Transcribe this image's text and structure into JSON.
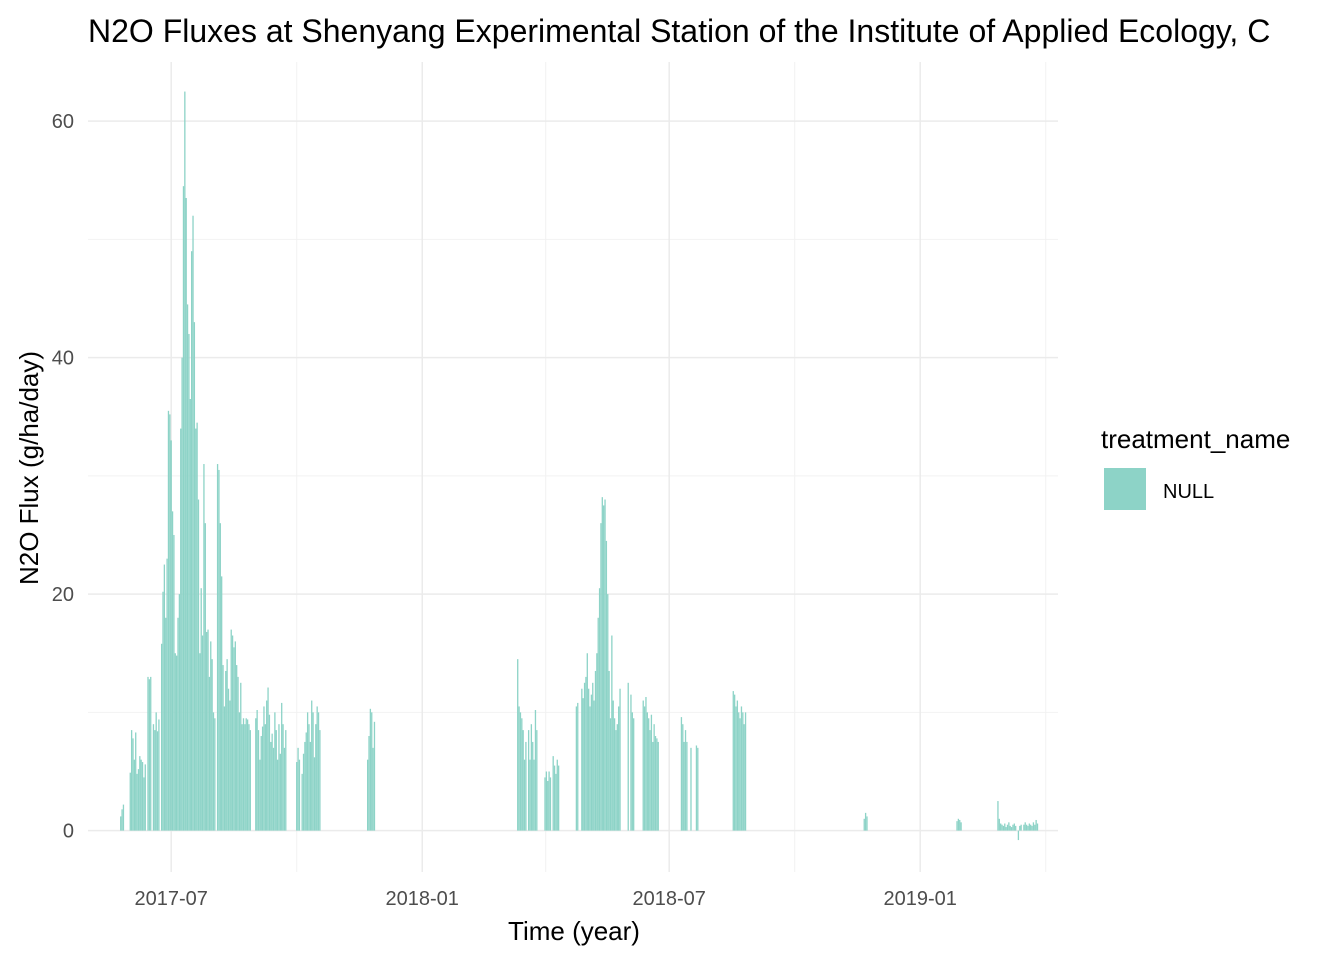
{
  "chart_data": {
    "type": "bar",
    "title": "N2O Fluxes at Shenyang Experimental Station of the Institute of Applied Ecology, C",
    "xlabel": "Time (year)",
    "ylabel": "N2O Flux (g/ha/day)",
    "x_ticks": [
      "2017-07",
      "2018-01",
      "2018-07",
      "2019-01"
    ],
    "y_ticks": [
      "0",
      "20",
      "40",
      "60"
    ],
    "xlim": [
      "2017-05-01",
      "2019-04-12"
    ],
    "ylim": [
      -3.5,
      65
    ],
    "grid": true,
    "legend": {
      "title": "treatment_name",
      "position": "right",
      "entries": [
        "NULL"
      ]
    },
    "series": [
      {
        "name": "NULL",
        "color": "#8dd3c7",
        "points": [
          [
            "2017-05-25",
            1.2
          ],
          [
            "2017-05-26",
            1.8
          ],
          [
            "2017-05-27",
            2.2
          ],
          [
            "2017-06-01",
            4.9
          ],
          [
            "2017-06-02",
            8.5
          ],
          [
            "2017-06-03",
            7.8
          ],
          [
            "2017-06-04",
            6.0
          ],
          [
            "2017-06-05",
            8.3
          ],
          [
            "2017-06-06",
            4.8
          ],
          [
            "2017-06-07",
            5.2
          ],
          [
            "2017-06-08",
            6.3
          ],
          [
            "2017-06-09",
            6.0
          ],
          [
            "2017-06-10",
            5.8
          ],
          [
            "2017-06-11",
            4.5
          ],
          [
            "2017-06-12",
            5.6
          ],
          [
            "2017-06-14",
            13.0
          ],
          [
            "2017-06-15",
            12.8
          ],
          [
            "2017-06-16",
            13.0
          ],
          [
            "2017-06-18",
            9.0
          ],
          [
            "2017-06-19",
            8.5
          ],
          [
            "2017-06-20",
            10.0
          ],
          [
            "2017-06-21",
            8.4
          ],
          [
            "2017-06-22",
            9.4
          ],
          [
            "2017-06-24",
            15.8
          ],
          [
            "2017-06-25",
            20.2
          ],
          [
            "2017-06-26",
            22.5
          ],
          [
            "2017-06-27",
            18.0
          ],
          [
            "2017-06-28",
            23.0
          ],
          [
            "2017-06-29",
            35.5
          ],
          [
            "2017-06-30",
            35.2
          ],
          [
            "2017-07-01",
            33.0
          ],
          [
            "2017-07-02",
            27.0
          ],
          [
            "2017-07-03",
            25.0
          ],
          [
            "2017-07-04",
            15.0
          ],
          [
            "2017-07-05",
            14.8
          ],
          [
            "2017-07-06",
            18.0
          ],
          [
            "2017-07-07",
            20.0
          ],
          [
            "2017-07-08",
            34.0
          ],
          [
            "2017-07-09",
            40.0
          ],
          [
            "2017-07-10",
            54.5
          ],
          [
            "2017-07-11",
            62.5
          ],
          [
            "2017-07-12",
            53.5
          ],
          [
            "2017-07-13",
            44.5
          ],
          [
            "2017-07-14",
            42.0
          ],
          [
            "2017-07-15",
            36.5
          ],
          [
            "2017-07-16",
            49.0
          ],
          [
            "2017-07-17",
            52.0
          ],
          [
            "2017-07-18",
            43.0
          ],
          [
            "2017-07-19",
            34.0
          ],
          [
            "2017-07-20",
            34.5
          ],
          [
            "2017-07-21",
            28.0
          ],
          [
            "2017-07-22",
            15.0
          ],
          [
            "2017-07-23",
            20.5
          ],
          [
            "2017-07-24",
            16.5
          ],
          [
            "2017-07-25",
            31.0
          ],
          [
            "2017-07-26",
            26.0
          ],
          [
            "2017-07-27",
            16.8
          ],
          [
            "2017-07-28",
            17.0
          ],
          [
            "2017-07-29",
            13.0
          ],
          [
            "2017-07-30",
            16.0
          ],
          [
            "2017-07-31",
            14.5
          ],
          [
            "2017-08-01",
            10.0
          ],
          [
            "2017-08-02",
            9.5
          ],
          [
            "2017-08-04",
            31.0
          ],
          [
            "2017-08-05",
            30.5
          ],
          [
            "2017-08-06",
            26.0
          ],
          [
            "2017-08-07",
            21.5
          ],
          [
            "2017-08-08",
            14.0
          ],
          [
            "2017-08-09",
            10.5
          ],
          [
            "2017-08-10",
            13.5
          ],
          [
            "2017-08-11",
            14.5
          ],
          [
            "2017-08-12",
            12.0
          ],
          [
            "2017-08-13",
            11.0
          ],
          [
            "2017-08-14",
            17.0
          ],
          [
            "2017-08-15",
            16.5
          ],
          [
            "2017-08-16",
            15.5
          ],
          [
            "2017-08-17",
            16.0
          ],
          [
            "2017-08-18",
            14.0
          ],
          [
            "2017-08-19",
            13.0
          ],
          [
            "2017-08-20",
            10.0
          ],
          [
            "2017-08-21",
            12.5
          ],
          [
            "2017-08-22",
            9.0
          ],
          [
            "2017-08-23",
            9.5
          ],
          [
            "2017-08-24",
            9.0
          ],
          [
            "2017-08-25",
            9.5
          ],
          [
            "2017-08-26",
            9.4
          ],
          [
            "2017-08-27",
            9.0
          ],
          [
            "2017-08-28",
            8.5
          ],
          [
            "2017-09-01",
            9.5
          ],
          [
            "2017-09-02",
            10.2
          ],
          [
            "2017-09-03",
            8.5
          ],
          [
            "2017-09-04",
            6.0
          ],
          [
            "2017-09-05",
            8.0
          ],
          [
            "2017-09-06",
            8.8
          ],
          [
            "2017-09-07",
            10.5
          ],
          [
            "2017-09-08",
            9.0
          ],
          [
            "2017-09-09",
            11.0
          ],
          [
            "2017-09-10",
            12.1
          ],
          [
            "2017-09-11",
            9.8
          ],
          [
            "2017-09-12",
            7.5
          ],
          [
            "2017-09-13",
            8.2
          ],
          [
            "2017-09-14",
            7.0
          ],
          [
            "2017-09-15",
            10.0
          ],
          [
            "2017-09-16",
            8.5
          ],
          [
            "2017-09-17",
            6.0
          ],
          [
            "2017-09-18",
            9.0
          ],
          [
            "2017-09-19",
            6.5
          ],
          [
            "2017-09-20",
            10.8
          ],
          [
            "2017-09-21",
            9.0
          ],
          [
            "2017-09-22",
            7.0
          ],
          [
            "2017-09-23",
            8.5
          ],
          [
            "2017-10-01",
            5.8
          ],
          [
            "2017-10-02",
            7.0
          ],
          [
            "2017-10-03",
            6.0
          ],
          [
            "2017-10-05",
            4.8
          ],
          [
            "2017-10-06",
            6.5
          ],
          [
            "2017-10-07",
            7.5
          ],
          [
            "2017-10-08",
            8.3
          ],
          [
            "2017-10-09",
            10.0
          ],
          [
            "2017-10-10",
            9.0
          ],
          [
            "2017-10-11",
            7.5
          ],
          [
            "2017-10-12",
            11.0
          ],
          [
            "2017-10-13",
            10.0
          ],
          [
            "2017-10-14",
            6.2
          ],
          [
            "2017-10-15",
            9.0
          ],
          [
            "2017-10-16",
            10.5
          ],
          [
            "2017-10-17",
            10.0
          ],
          [
            "2017-10-18",
            8.5
          ],
          [
            "2017-11-22",
            6.0
          ],
          [
            "2017-11-23",
            8.0
          ],
          [
            "2017-11-24",
            10.3
          ],
          [
            "2017-11-25",
            10.0
          ],
          [
            "2017-11-26",
            7.0
          ],
          [
            "2017-11-27",
            9.2
          ],
          [
            "2018-03-12",
            14.5
          ],
          [
            "2018-03-13",
            10.5
          ],
          [
            "2018-03-14",
            10.0
          ],
          [
            "2018-03-15",
            9.5
          ],
          [
            "2018-03-16",
            8.5
          ],
          [
            "2018-03-17",
            6.0
          ],
          [
            "2018-03-18",
            7.5
          ],
          [
            "2018-03-20",
            8.5
          ],
          [
            "2018-03-21",
            6.0
          ],
          [
            "2018-03-22",
            9.0
          ],
          [
            "2018-03-23",
            7.5
          ],
          [
            "2018-03-24",
            6.0
          ],
          [
            "2018-03-25",
            10.2
          ],
          [
            "2018-03-26",
            8.5
          ],
          [
            "2018-04-01",
            4.5
          ],
          [
            "2018-04-02",
            5.0
          ],
          [
            "2018-04-03",
            4.2
          ],
          [
            "2018-04-04",
            5.0
          ],
          [
            "2018-04-05",
            4.5
          ],
          [
            "2018-04-07",
            6.3
          ],
          [
            "2018-04-08",
            5.5
          ],
          [
            "2018-04-09",
            4.8
          ],
          [
            "2018-04-10",
            6.0
          ],
          [
            "2018-04-11",
            5.5
          ],
          [
            "2018-04-24",
            10.5
          ],
          [
            "2018-04-25",
            10.8
          ],
          [
            "2018-04-28",
            12.0
          ],
          [
            "2018-04-29",
            11.2
          ],
          [
            "2018-04-30",
            12.5
          ],
          [
            "2018-05-01",
            13.0
          ],
          [
            "2018-05-02",
            15.0
          ],
          [
            "2018-05-03",
            12.0
          ],
          [
            "2018-05-04",
            10.5
          ],
          [
            "2018-05-05",
            11.5
          ],
          [
            "2018-05-06",
            12.5
          ],
          [
            "2018-05-07",
            11.0
          ],
          [
            "2018-05-08",
            13.5
          ],
          [
            "2018-05-09",
            15.0
          ],
          [
            "2018-05-10",
            18.0
          ],
          [
            "2018-05-11",
            20.5
          ],
          [
            "2018-05-12",
            26.0
          ],
          [
            "2018-05-13",
            28.2
          ],
          [
            "2018-05-14",
            27.5
          ],
          [
            "2018-05-15",
            28.0
          ],
          [
            "2018-05-16",
            24.5
          ],
          [
            "2018-05-17",
            20.0
          ],
          [
            "2018-05-18",
            13.5
          ],
          [
            "2018-05-19",
            9.5
          ],
          [
            "2018-05-20",
            16.5
          ],
          [
            "2018-05-21",
            11.0
          ],
          [
            "2018-05-22",
            9.5
          ],
          [
            "2018-05-23",
            8.5
          ],
          [
            "2018-05-24",
            9.0
          ],
          [
            "2018-05-25",
            10.5
          ],
          [
            "2018-05-26",
            12.0
          ],
          [
            "2018-06-01",
            12.5
          ],
          [
            "2018-06-03",
            11.5
          ],
          [
            "2018-06-04",
            10.0
          ],
          [
            "2018-06-05",
            9.5
          ],
          [
            "2018-06-12",
            11.0
          ],
          [
            "2018-06-13",
            10.5
          ],
          [
            "2018-06-14",
            11.3
          ],
          [
            "2018-06-15",
            10.0
          ],
          [
            "2018-06-16",
            9.5
          ],
          [
            "2018-06-17",
            8.5
          ],
          [
            "2018-06-18",
            9.8
          ],
          [
            "2018-06-19",
            7.5
          ],
          [
            "2018-06-20",
            9.0
          ],
          [
            "2018-06-21",
            8.0
          ],
          [
            "2018-06-22",
            7.8
          ],
          [
            "2018-06-23",
            7.5
          ],
          [
            "2018-07-10",
            9.6
          ],
          [
            "2018-07-11",
            9.0
          ],
          [
            "2018-07-12",
            7.5
          ],
          [
            "2018-07-13",
            8.5
          ],
          [
            "2018-07-14",
            7.5
          ],
          [
            "2018-07-17",
            7.0
          ],
          [
            "2018-07-21",
            7.2
          ],
          [
            "2018-07-22",
            7.0
          ],
          [
            "2018-08-17",
            11.8
          ],
          [
            "2018-08-18",
            11.5
          ],
          [
            "2018-08-19",
            10.5
          ],
          [
            "2018-08-20",
            11.0
          ],
          [
            "2018-08-21",
            10.0
          ],
          [
            "2018-08-22",
            9.5
          ],
          [
            "2018-08-23",
            10.5
          ],
          [
            "2018-08-24",
            10.0
          ],
          [
            "2018-08-25",
            9.0
          ],
          [
            "2018-08-26",
            10.0
          ],
          [
            "2018-11-21",
            1.0
          ],
          [
            "2018-11-22",
            1.5
          ],
          [
            "2018-11-23",
            1.2
          ],
          [
            "2019-01-28",
            0.8
          ],
          [
            "2019-01-29",
            1.0
          ],
          [
            "2019-01-30",
            0.9
          ],
          [
            "2019-01-31",
            0.7
          ],
          [
            "2019-02-27",
            2.5
          ],
          [
            "2019-02-28",
            1.0
          ],
          [
            "2019-03-01",
            0.6
          ],
          [
            "2019-03-02",
            0.5
          ],
          [
            "2019-03-03",
            0.4
          ],
          [
            "2019-03-04",
            0.6
          ],
          [
            "2019-03-05",
            0.3
          ],
          [
            "2019-03-06",
            0.5
          ],
          [
            "2019-03-07",
            0.7
          ],
          [
            "2019-03-08",
            0.4
          ],
          [
            "2019-03-09",
            0.3
          ],
          [
            "2019-03-10",
            0.5
          ],
          [
            "2019-03-11",
            0.6
          ],
          [
            "2019-03-12",
            0.4
          ],
          [
            "2019-03-14",
            -0.8
          ],
          [
            "2019-03-15",
            0.4
          ],
          [
            "2019-03-16",
            0.5
          ],
          [
            "2019-03-18",
            0.5
          ],
          [
            "2019-03-19",
            0.7
          ],
          [
            "2019-03-20",
            0.5
          ],
          [
            "2019-03-21",
            0.4
          ],
          [
            "2019-03-22",
            0.6
          ],
          [
            "2019-03-23",
            0.5
          ],
          [
            "2019-03-24",
            0.4
          ],
          [
            "2019-03-25",
            0.7
          ],
          [
            "2019-03-26",
            0.5
          ],
          [
            "2019-03-27",
            0.9
          ],
          [
            "2019-03-28",
            0.6
          ]
        ]
      }
    ]
  }
}
